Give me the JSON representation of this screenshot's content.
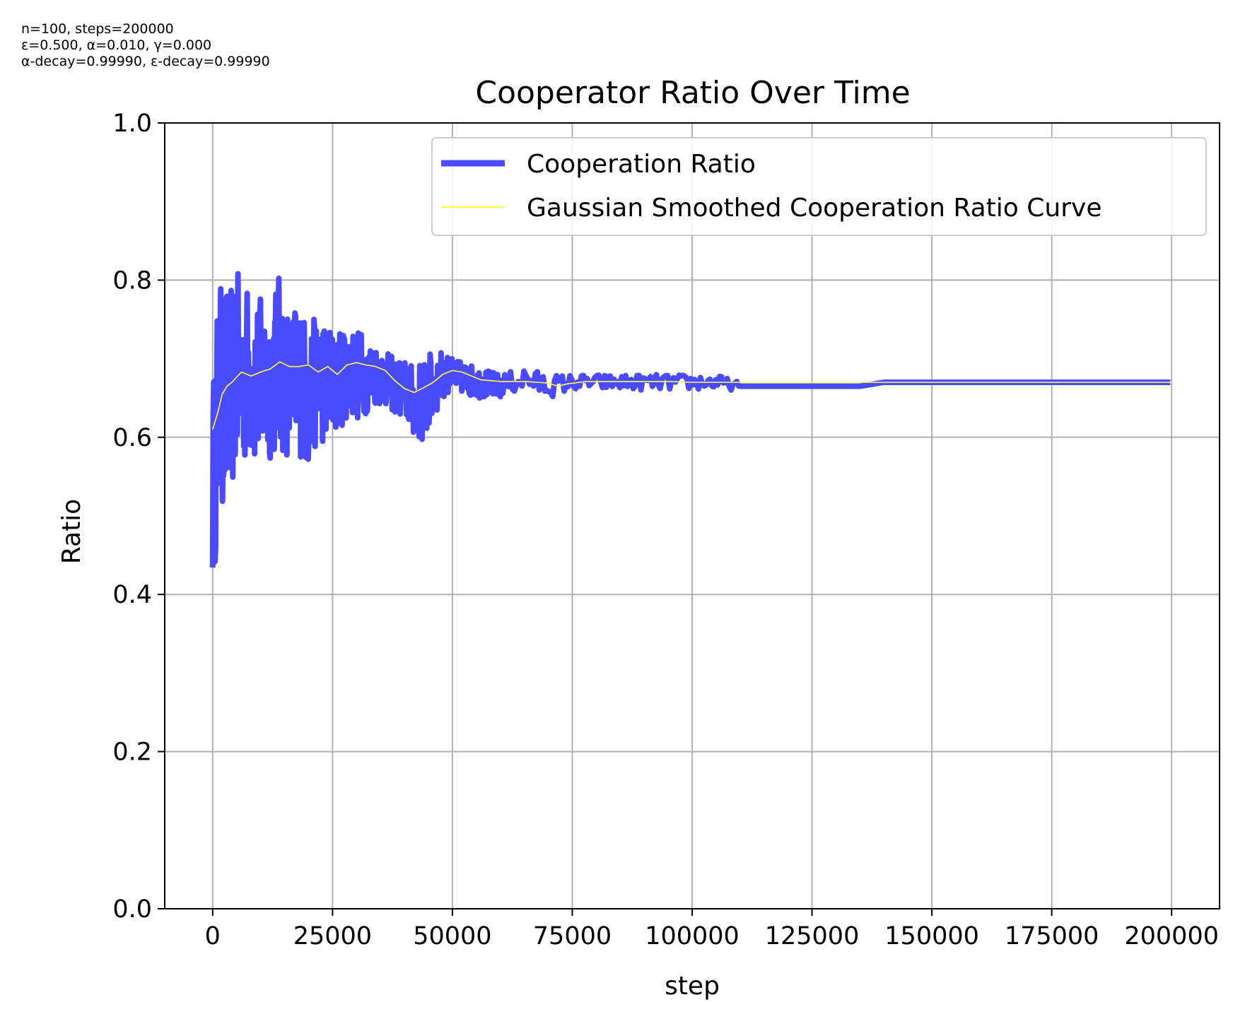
{
  "params": [
    "n=100, steps=200000",
    "ε=0.500, α=0.010, γ=0.000",
    "α-decay=0.99990, ε-decay=0.99990"
  ],
  "chart_data": {
    "type": "line",
    "title": "Cooperator Ratio Over Time",
    "xlabel": "step",
    "ylabel": "Ratio",
    "xlim": [
      -10000,
      210000
    ],
    "ylim": [
      0.0,
      1.0
    ],
    "xticks": [
      0,
      25000,
      50000,
      75000,
      100000,
      125000,
      150000,
      175000,
      200000
    ],
    "yticks": [
      0.0,
      0.2,
      0.4,
      0.6,
      0.8,
      1.0
    ],
    "ytick_labels": [
      "0.0",
      "0.2",
      "0.4",
      "0.6",
      "0.8",
      "1.0"
    ],
    "grid": true,
    "legend_position": "top-right",
    "series": [
      {
        "name": "Cooperation Ratio",
        "color": "#4a4aff",
        "style": "thick-line",
        "x": [
          0,
          500,
          1000,
          2000,
          3000,
          4000,
          5000,
          6000,
          7000,
          8000,
          9000,
          10000,
          12000,
          14000,
          16000,
          18000,
          20000,
          22000,
          24000,
          26000,
          28000,
          30000,
          32000,
          34000,
          36000,
          38000,
          40000,
          42000,
          44000,
          46000,
          48000,
          50000,
          55000,
          60000,
          65000,
          70000,
          75000,
          80000,
          85000,
          90000,
          95000,
          100000,
          105000,
          110000,
          115000,
          120000,
          125000,
          130000,
          135000,
          140000,
          150000,
          160000,
          170000,
          180000,
          190000,
          200000
        ],
        "upper": [
          0.66,
          0.71,
          0.78,
          0.8,
          0.8,
          0.79,
          0.82,
          0.78,
          0.8,
          0.78,
          0.78,
          0.78,
          0.78,
          0.81,
          0.76,
          0.78,
          0.74,
          0.76,
          0.75,
          0.73,
          0.75,
          0.74,
          0.73,
          0.72,
          0.71,
          0.7,
          0.7,
          0.69,
          0.7,
          0.71,
          0.71,
          0.7,
          0.69,
          0.68,
          0.69,
          0.68,
          0.68,
          0.68,
          0.68,
          0.68,
          0.68,
          0.68,
          0.68,
          0.67,
          0.67,
          0.67,
          0.67,
          0.67,
          0.67,
          0.67,
          0.67,
          0.67,
          0.67,
          0.67,
          0.67,
          0.67
        ],
        "lower": [
          0.41,
          0.44,
          0.47,
          0.51,
          0.48,
          0.53,
          0.56,
          0.55,
          0.57,
          0.57,
          0.56,
          0.56,
          0.57,
          0.58,
          0.57,
          0.58,
          0.55,
          0.6,
          0.58,
          0.61,
          0.62,
          0.62,
          0.63,
          0.64,
          0.64,
          0.63,
          0.62,
          0.6,
          0.59,
          0.62,
          0.65,
          0.66,
          0.65,
          0.65,
          0.66,
          0.65,
          0.66,
          0.66,
          0.66,
          0.66,
          0.66,
          0.66,
          0.66,
          0.66,
          0.66,
          0.66,
          0.66,
          0.66,
          0.66,
          0.67,
          0.67,
          0.67,
          0.67,
          0.67,
          0.67,
          0.67
        ]
      },
      {
        "name": "Gaussian Smoothed Cooperation Ratio Curve",
        "color": "#ffff44",
        "style": "thin-line",
        "x": [
          0,
          1000,
          2000,
          3000,
          4000,
          6000,
          8000,
          10000,
          12000,
          14000,
          16000,
          18000,
          20000,
          22000,
          24000,
          26000,
          28000,
          30000,
          32000,
          34000,
          36000,
          38000,
          40000,
          42000,
          44000,
          46000,
          48000,
          50000,
          52000,
          54000,
          56000,
          60000,
          65000,
          70000,
          72000,
          74000,
          78000,
          85000,
          95000,
          100000,
          110000,
          120000,
          140000,
          160000,
          180000,
          200000
        ],
        "values": [
          0.61,
          0.63,
          0.655,
          0.665,
          0.67,
          0.683,
          0.678,
          0.683,
          0.687,
          0.696,
          0.69,
          0.69,
          0.692,
          0.683,
          0.69,
          0.68,
          0.692,
          0.695,
          0.692,
          0.69,
          0.685,
          0.672,
          0.662,
          0.657,
          0.663,
          0.67,
          0.68,
          0.685,
          0.683,
          0.678,
          0.673,
          0.671,
          0.671,
          0.669,
          0.665,
          0.668,
          0.671,
          0.671,
          0.671,
          0.67,
          0.67,
          0.67,
          0.67,
          0.67,
          0.67,
          0.67
        ]
      }
    ]
  }
}
